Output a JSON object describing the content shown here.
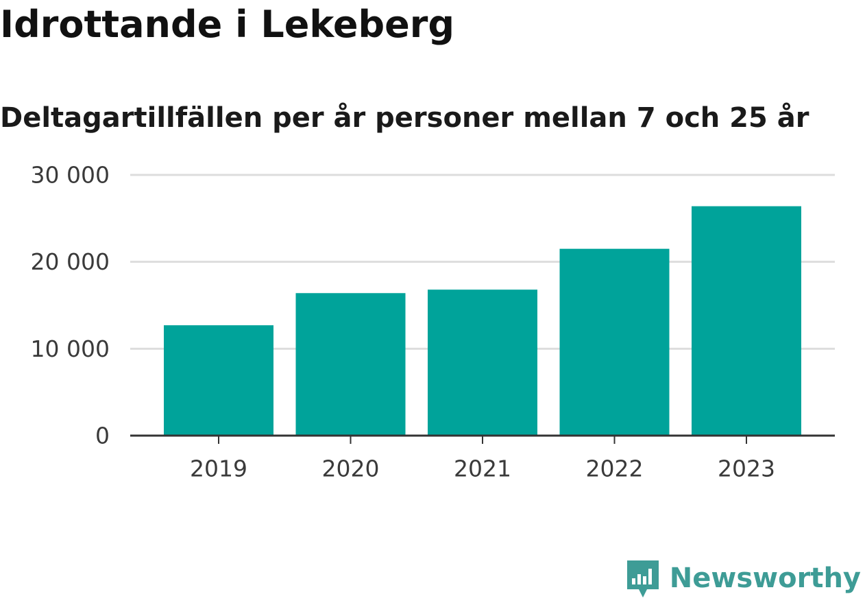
{
  "header": {
    "title": "Idrottande i Lekeberg",
    "subtitle": "Deltagartillfällen per år personer mellan 7 och 25 år"
  },
  "brand": {
    "name": "Newsworthy",
    "icon": "newsworthy-logo-icon",
    "color": "#3e9c96"
  },
  "colors": {
    "bar": "#00a39a",
    "grid": "#dddddd",
    "axis": "#333333"
  },
  "chart_data": {
    "type": "bar",
    "categories": [
      "2019",
      "2020",
      "2021",
      "2022",
      "2023"
    ],
    "values": [
      12700,
      16400,
      16800,
      21500,
      26400
    ],
    "ylim": [
      0,
      30000
    ],
    "yticks": [
      0,
      10000,
      20000,
      30000
    ],
    "ytick_labels": [
      "0",
      "10 000",
      "20 000",
      "30 000"
    ],
    "grid": true,
    "legend": "none",
    "xlabel": "",
    "ylabel": ""
  }
}
